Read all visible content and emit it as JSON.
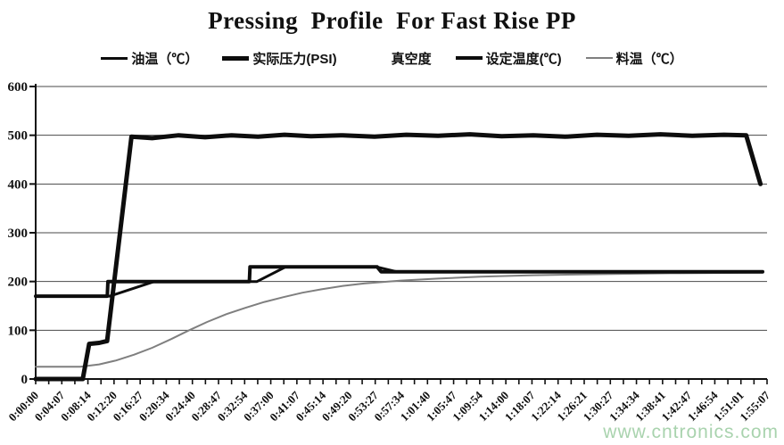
{
  "watermark": {
    "text": "www.cntronics.com",
    "color": "#a9d3ae"
  },
  "chart_data": {
    "type": "line",
    "title": "Pressing  Profile  For Fast Rise PP",
    "x_axis": {
      "kind": "time",
      "range_seconds": [
        0,
        6907
      ],
      "tick_labels": [
        "0:00:00",
        "0:04:07",
        "0:08:14",
        "0:12:20",
        "0:16:27",
        "0:20:34",
        "0:24:40",
        "0:28:47",
        "0:32:54",
        "0:37:00",
        "0:41:07",
        "0:45:14",
        "0:49:20",
        "0:53:27",
        "0:57:34",
        "1:01:40",
        "1:05:47",
        "1:09:54",
        "1:14:00",
        "1:18:07",
        "1:22:14",
        "1:26:21",
        "1:30:27",
        "1:34:34",
        "1:38:41",
        "1:42:47",
        "1:46:54",
        "1:51:01",
        "1:55:07"
      ],
      "minor_ticks_between_labels": 1
    },
    "y_axis": {
      "min": 0,
      "max": 600,
      "step": 100,
      "tick_labels": [
        "0",
        "100",
        "200",
        "300",
        "400",
        "500",
        "600"
      ]
    },
    "grid": {
      "horizontal": true,
      "vertical": false,
      "color": "#4a4a4a"
    },
    "legend_position": "top",
    "series": [
      {
        "key": "oil-temp",
        "label": "油温（℃）",
        "color": "#0d0d0d",
        "stroke_width": 3,
        "points": [
          [
            0,
            170
          ],
          [
            700,
            170
          ],
          [
            1120,
            200
          ],
          [
            2090,
            200
          ],
          [
            2360,
            230
          ],
          [
            3220,
            230
          ],
          [
            3410,
            220
          ],
          [
            6865,
            220
          ]
        ]
      },
      {
        "key": "actual-pressure",
        "label": "实际压力(PSI)",
        "color": "#0d0d0d",
        "stroke_width": 5,
        "points": [
          [
            0,
            0
          ],
          [
            445,
            0
          ],
          [
            505,
            72
          ],
          [
            600,
            74
          ],
          [
            675,
            78
          ],
          [
            905,
            497
          ],
          [
            1100,
            494
          ],
          [
            1350,
            500
          ],
          [
            1600,
            496
          ],
          [
            1850,
            500
          ],
          [
            2100,
            497
          ],
          [
            2350,
            501
          ],
          [
            2600,
            498
          ],
          [
            2900,
            500
          ],
          [
            3200,
            497
          ],
          [
            3500,
            501
          ],
          [
            3800,
            499
          ],
          [
            4100,
            502
          ],
          [
            4400,
            498
          ],
          [
            4700,
            500
          ],
          [
            5000,
            497
          ],
          [
            5300,
            501
          ],
          [
            5600,
            499
          ],
          [
            5900,
            502
          ],
          [
            6200,
            499
          ],
          [
            6500,
            501
          ],
          [
            6710,
            500
          ],
          [
            6845,
            400
          ]
        ]
      },
      {
        "key": "vacuum",
        "label": "真空度",
        "color": "#ffffff",
        "stroke_width": 0,
        "points": []
      },
      {
        "key": "set-temp",
        "label": "设定温度(℃)",
        "color": "#0d0d0d",
        "stroke_width": 4,
        "points": [
          [
            0,
            170
          ],
          [
            676,
            170
          ],
          [
            682,
            200
          ],
          [
            2018,
            200
          ],
          [
            2024,
            230
          ],
          [
            3225,
            230
          ],
          [
            3262,
            220
          ],
          [
            6865,
            220
          ]
        ]
      },
      {
        "key": "material-temp",
        "label": "料温（℃）",
        "color": "#7f7f7f",
        "stroke_width": 2,
        "points": [
          [
            0,
            25
          ],
          [
            420,
            25
          ],
          [
            600,
            30
          ],
          [
            760,
            38
          ],
          [
            930,
            50
          ],
          [
            1100,
            64
          ],
          [
            1280,
            82
          ],
          [
            1450,
            100
          ],
          [
            1620,
            117
          ],
          [
            1800,
            133
          ],
          [
            1980,
            146
          ],
          [
            2160,
            158
          ],
          [
            2340,
            168
          ],
          [
            2520,
            177
          ],
          [
            2700,
            184
          ],
          [
            2900,
            191
          ],
          [
            3100,
            196
          ],
          [
            3450,
            202
          ],
          [
            3800,
            206
          ],
          [
            4200,
            210
          ],
          [
            4700,
            213
          ],
          [
            5300,
            215
          ],
          [
            6000,
            217
          ],
          [
            6865,
            218
          ]
        ]
      }
    ]
  }
}
